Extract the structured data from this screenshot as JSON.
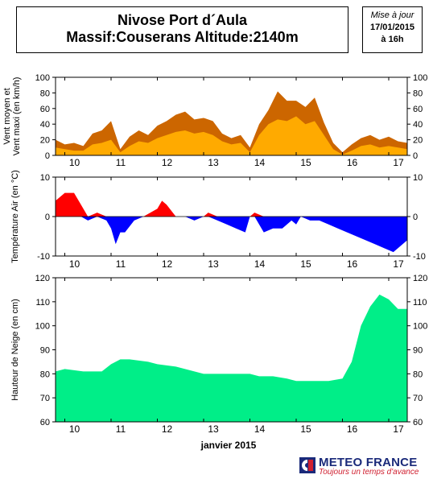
{
  "header": {
    "title_line1": "Nivose Port d´Aula",
    "title_line2": "Massif:Couserans Altitude:2140m",
    "update_label": "Mise à jour",
    "update_date": "17/01/2015",
    "update_time": "à 16h"
  },
  "x_axis": {
    "days": [
      "10",
      "11",
      "12",
      "13",
      "14",
      "15",
      "16",
      "17"
    ],
    "month_label": "janvier 2015"
  },
  "brand": {
    "name": "METEO FRANCE",
    "slogan": "Toujours un temps d'avance"
  },
  "chart_data": [
    {
      "type": "area",
      "title": "",
      "ylabel": "Vent moyen et Vent maxi (en km/h)",
      "ylim": [
        0,
        100
      ],
      "yticks": [
        0,
        20,
        40,
        60,
        80,
        100
      ],
      "x_unit": "day of January 2015",
      "xlim": [
        9.8,
        17.4
      ],
      "colors": {
        "max": "#cc6600",
        "mean": "#ffaa00"
      },
      "series": [
        {
          "name": "Vent maxi",
          "x": [
            9.8,
            10.0,
            10.2,
            10.4,
            10.6,
            10.8,
            11.0,
            11.2,
            11.4,
            11.6,
            11.8,
            12.0,
            12.2,
            12.4,
            12.6,
            12.8,
            13.0,
            13.2,
            13.4,
            13.6,
            13.8,
            14.0,
            14.2,
            14.4,
            14.6,
            14.8,
            15.0,
            15.2,
            15.4,
            15.6,
            15.8,
            16.0,
            16.2,
            16.4,
            16.6,
            16.8,
            17.0,
            17.2,
            17.4
          ],
          "values": [
            20,
            14,
            16,
            12,
            28,
            32,
            44,
            8,
            24,
            32,
            26,
            38,
            44,
            52,
            56,
            46,
            48,
            44,
            28,
            22,
            26,
            10,
            40,
            58,
            82,
            70,
            70,
            62,
            74,
            42,
            16,
            4,
            14,
            22,
            26,
            20,
            24,
            18,
            16
          ]
        },
        {
          "name": "Vent moyen",
          "x": [
            9.8,
            10.0,
            10.2,
            10.4,
            10.6,
            10.8,
            11.0,
            11.2,
            11.4,
            11.6,
            11.8,
            12.0,
            12.2,
            12.4,
            12.6,
            12.8,
            13.0,
            13.2,
            13.4,
            13.6,
            13.8,
            14.0,
            14.2,
            14.4,
            14.6,
            14.8,
            15.0,
            15.2,
            15.4,
            15.6,
            15.8,
            16.0,
            16.2,
            16.4,
            16.6,
            16.8,
            17.0,
            17.2,
            17.4
          ],
          "values": [
            10,
            8,
            6,
            6,
            14,
            16,
            20,
            4,
            12,
            18,
            16,
            22,
            26,
            30,
            32,
            28,
            30,
            26,
            18,
            14,
            16,
            4,
            26,
            40,
            46,
            44,
            50,
            40,
            44,
            26,
            8,
            1,
            6,
            12,
            14,
            10,
            12,
            10,
            8
          ]
        }
      ]
    },
    {
      "type": "area",
      "title": "",
      "ylabel": "Température Air (en °C)",
      "ylim": [
        -10,
        10
      ],
      "yticks": [
        -10,
        0,
        10
      ],
      "x_unit": "day of January 2015",
      "xlim": [
        9.8,
        17.4
      ],
      "colors": {
        "positive": "#ff0000",
        "negative": "#0000ff"
      },
      "series": [
        {
          "name": "Température",
          "x": [
            9.8,
            10.0,
            10.2,
            10.35,
            10.5,
            10.7,
            10.9,
            11.0,
            11.1,
            11.2,
            11.3,
            11.5,
            11.7,
            12.0,
            12.1,
            12.2,
            12.4,
            12.6,
            12.8,
            13.0,
            13.1,
            13.3,
            13.5,
            13.7,
            13.9,
            14.0,
            14.1,
            14.3,
            14.5,
            14.7,
            14.9,
            15.0,
            15.1,
            15.3,
            15.5,
            15.7,
            15.9,
            16.1,
            16.3,
            16.5,
            16.7,
            16.9,
            17.1,
            17.2,
            17.4
          ],
          "values": [
            4,
            6,
            6,
            3,
            -1,
            1,
            -1,
            -3,
            -7,
            -4,
            -4,
            -1,
            0,
            2,
            4,
            3,
            0,
            0,
            -1,
            0,
            1,
            -1,
            -2,
            -3,
            -4,
            0,
            1,
            -4,
            -3,
            -3,
            -1,
            -2,
            0,
            -1,
            -1,
            -2,
            -3,
            -4,
            -5,
            -6,
            -7,
            -8,
            -9,
            -8,
            -6
          ]
        }
      ]
    },
    {
      "type": "area",
      "title": "",
      "ylabel": "Hauteur de Neige (en cm)",
      "ylim": [
        60,
        120
      ],
      "yticks": [
        60,
        70,
        80,
        90,
        100,
        110,
        120
      ],
      "x_unit": "day of January 2015",
      "xlim": [
        9.8,
        17.4
      ],
      "colors": {
        "fill": "#00ee88"
      },
      "series": [
        {
          "name": "Hauteur de neige",
          "x": [
            9.8,
            10.0,
            10.4,
            10.8,
            11.0,
            11.2,
            11.4,
            11.8,
            12.0,
            12.4,
            12.8,
            13.0,
            13.5,
            14.0,
            14.2,
            14.5,
            14.8,
            15.0,
            15.3,
            15.7,
            16.0,
            16.2,
            16.4,
            16.6,
            16.8,
            17.0,
            17.2,
            17.4
          ],
          "values": [
            81,
            82,
            81,
            81,
            84,
            86,
            86,
            85,
            84,
            83,
            81,
            80,
            80,
            80,
            79,
            79,
            78,
            77,
            77,
            77,
            78,
            85,
            100,
            108,
            113,
            111,
            107,
            107
          ]
        }
      ]
    }
  ]
}
